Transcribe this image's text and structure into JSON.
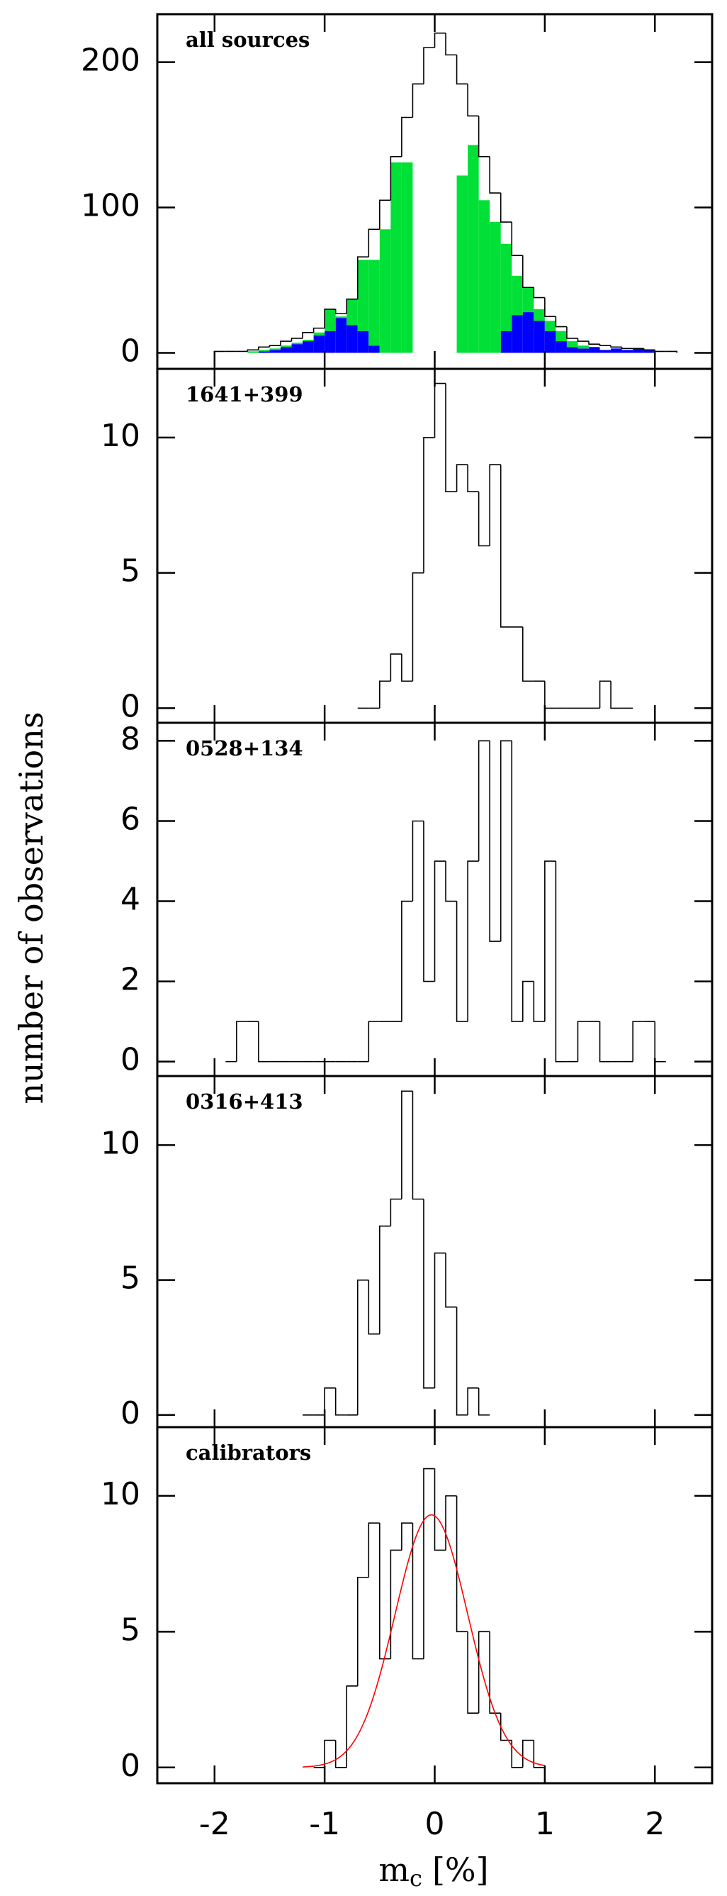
{
  "figure": {
    "ylabel": "number of observations",
    "xlabel": "m",
    "xlabel_sub": "c",
    "xlabel_unit": "[%]",
    "xlim": [
      -2.52,
      2.52
    ],
    "xticks": [
      -2,
      -1,
      0,
      1,
      2
    ]
  },
  "chart_data": [
    {
      "type": "histogram",
      "label": "all sources",
      "bins": [
        -2,
        -1.9,
        -1.8,
        -1.7,
        -1.6,
        -1.5,
        -1.4,
        -1.3,
        -1.2,
        -1.1,
        -1,
        -0.9,
        -0.8,
        -0.7,
        -0.6,
        -0.5,
        -0.4,
        -0.3,
        -0.2,
        -0.1,
        0,
        0.1,
        0.2,
        0.3,
        0.4,
        0.5,
        0.6,
        0.7,
        0.8,
        0.9,
        1,
        1.1,
        1.2,
        1.3,
        1.4,
        1.5,
        1.6,
        1.7,
        1.8,
        1.9,
        2,
        2.1,
        2.2
      ],
      "series": [
        {
          "color": "#0000ff",
          "fill": true,
          "values": [
            0,
            0,
            0,
            0,
            1,
            2,
            4,
            6,
            8,
            12,
            15,
            24,
            19,
            15,
            5,
            0,
            0,
            0,
            0,
            0,
            0,
            0,
            0,
            0,
            0,
            0,
            15,
            26,
            28,
            22,
            15,
            8,
            4,
            3,
            4,
            2,
            3,
            2,
            3,
            2,
            0,
            0
          ]
        },
        {
          "color": "#00e036",
          "fill": true,
          "values": [
            0,
            0,
            0,
            1,
            1,
            1,
            1,
            1,
            1,
            2,
            15,
            1,
            18,
            49,
            59,
            85,
            131,
            131,
            0,
            0,
            0,
            0,
            122,
            143,
            105,
            90,
            60,
            27,
            17,
            8,
            7,
            7,
            4,
            2,
            0,
            0,
            0,
            0,
            0,
            0,
            0,
            0
          ]
        },
        {
          "color": "#000000",
          "fill": false,
          "values": [
            1,
            1,
            1,
            2,
            4,
            5,
            8,
            10,
            14,
            17,
            30,
            27,
            37,
            66,
            85,
            105,
            135,
            162,
            185,
            210,
            220,
            205,
            185,
            163,
            135,
            110,
            90,
            67,
            45,
            38,
            25,
            18,
            10,
            8,
            6,
            5,
            4,
            3,
            3,
            2,
            1,
            1
          ]
        }
      ],
      "ylim": [
        -11,
        233
      ],
      "yticks": [
        0,
        100,
        200
      ]
    },
    {
      "type": "histogram",
      "label": "1641+399",
      "bins": [
        -0.7,
        -0.6,
        -0.5,
        -0.4,
        -0.3,
        -0.2,
        -0.1,
        0,
        0.1,
        0.2,
        0.3,
        0.4,
        0.5,
        0.6,
        0.7,
        0.8,
        0.9,
        1,
        1.1,
        1.2,
        1.3,
        1.4,
        1.5,
        1.6,
        1.7,
        1.8
      ],
      "series": [
        {
          "color": "#000000",
          "fill": false,
          "values": [
            0,
            0,
            1,
            2,
            1,
            5,
            10,
            12,
            8,
            9,
            8,
            6,
            9,
            3,
            3,
            1,
            1,
            0,
            0,
            0,
            0,
            0,
            1,
            0,
            0
          ]
        }
      ],
      "ylim": [
        -0.54,
        12.54
      ],
      "yticks": [
        0,
        5,
        10
      ]
    },
    {
      "type": "histogram",
      "label": "0528+134",
      "bins": [
        -1.9,
        -1.8,
        -1.7,
        -1.6,
        -1.5,
        -1.4,
        -1.3,
        -1.2,
        -1.1,
        -1,
        -0.9,
        -0.8,
        -0.7,
        -0.6,
        -0.5,
        -0.4,
        -0.3,
        -0.2,
        -0.1,
        0,
        0.1,
        0.2,
        0.3,
        0.4,
        0.5,
        0.6,
        0.7,
        0.8,
        0.9,
        1,
        1.1,
        1.2,
        1.3,
        1.4,
        1.5,
        1.6,
        1.7,
        1.8,
        1.9,
        2,
        2.1
      ],
      "series": [
        {
          "color": "#000000",
          "fill": false,
          "values": [
            0,
            1,
            1,
            0,
            0,
            0,
            0,
            0,
            0,
            0,
            0,
            0,
            0,
            1,
            1,
            1,
            4,
            6,
            2,
            5,
            4,
            1,
            5,
            8,
            3,
            8,
            1,
            2,
            1,
            5,
            0,
            0,
            1,
            1,
            0,
            0,
            0,
            1,
            1,
            0
          ]
        }
      ],
      "ylim": [
        -0.36,
        8.45
      ],
      "yticks": [
        0,
        2,
        4,
        6,
        8
      ]
    },
    {
      "type": "histogram",
      "label": "0316+413",
      "bins": [
        -1.2,
        -1.1,
        -1,
        -0.9,
        -0.8,
        -0.7,
        -0.6,
        -0.5,
        -0.4,
        -0.3,
        -0.2,
        -0.1,
        0,
        0.1,
        0.2,
        0.3,
        0.4,
        0.5
      ],
      "series": [
        {
          "color": "#000000",
          "fill": false,
          "values": [
            0,
            0,
            1,
            0,
            0,
            5,
            3,
            7,
            8,
            12,
            8,
            1,
            6,
            4,
            0,
            1,
            0
          ]
        }
      ],
      "ylim": [
        -0.45,
        12.56
      ],
      "yticks": [
        0,
        5,
        10
      ]
    },
    {
      "type": "histogram",
      "label": "calibrators",
      "bins": [
        -1.1,
        -1,
        -0.9,
        -0.8,
        -0.7,
        -0.6,
        -0.5,
        -0.4,
        -0.3,
        -0.2,
        -0.1,
        0,
        0.1,
        0.2,
        0.3,
        0.4,
        0.5,
        0.6,
        0.7,
        0.8,
        0.9,
        1
      ],
      "series": [
        {
          "color": "#000000",
          "fill": false,
          "values": [
            0,
            1,
            0,
            3,
            7,
            9,
            4,
            8,
            9,
            4,
            11,
            8,
            10,
            5,
            2,
            5,
            2,
            1,
            0,
            1,
            0
          ]
        }
      ],
      "fit": {
        "amplitude": 9.3,
        "mean": -0.03,
        "sigma": 0.33,
        "range": [
          -1.2,
          1.0
        ],
        "color": "#ff0000"
      },
      "ylim": [
        -0.58,
        12.53
      ],
      "yticks": [
        0,
        5,
        10
      ]
    }
  ]
}
